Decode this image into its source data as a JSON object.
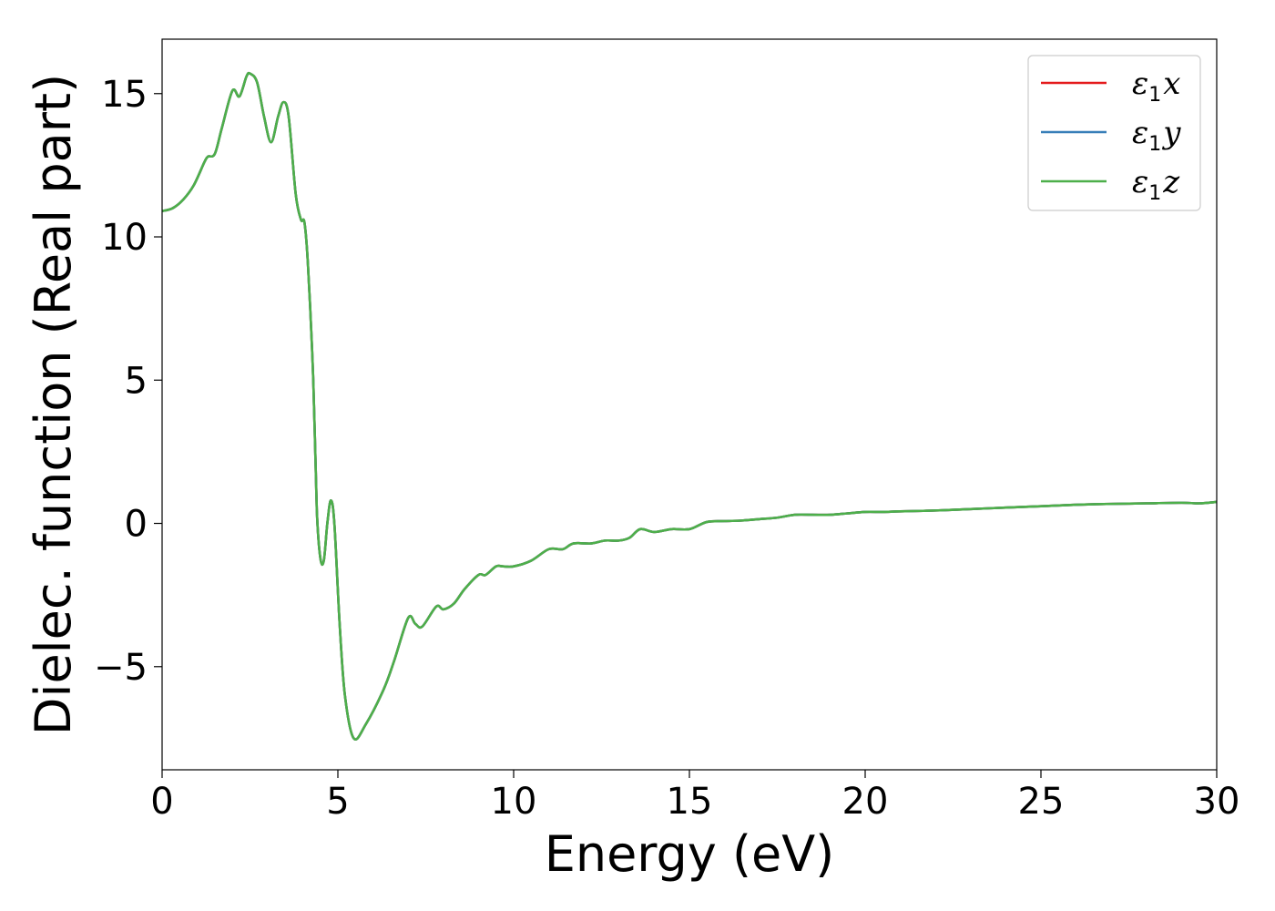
{
  "chart_data": {
    "type": "line",
    "title": "",
    "xlabel": "Energy (eV)",
    "ylabel": "Dielec. function (Real part)",
    "xlim": [
      0,
      30
    ],
    "ylim": [
      -8.6,
      16.9
    ],
    "xticks": [
      0,
      5,
      10,
      15,
      20,
      25,
      30
    ],
    "yticks": [
      -5,
      0,
      5,
      10,
      15
    ],
    "ytick_labels": [
      "−5",
      "0",
      "5",
      "10",
      "15"
    ],
    "grid": false,
    "legend_position": "top-right",
    "series": [
      {
        "name": "ε₁x",
        "legend_base": "ε",
        "legend_sub": "1",
        "legend_var": "x",
        "color": "#e41a1c",
        "x": [
          0,
          0.3,
          0.6,
          0.9,
          1.2,
          1.3,
          1.5,
          1.7,
          2.0,
          2.2,
          2.4,
          2.5,
          2.7,
          2.9,
          3.1,
          3.3,
          3.45,
          3.6,
          3.8,
          3.95,
          4.05,
          4.15,
          4.3,
          4.4,
          4.5,
          4.6,
          4.7,
          4.8,
          4.9,
          5.05,
          5.2,
          5.45,
          5.8,
          6.3,
          6.6,
          7.0,
          7.2,
          7.4,
          7.8,
          8.0,
          8.3,
          8.6,
          9.0,
          9.2,
          9.5,
          9.7,
          10.0,
          10.5,
          11.0,
          11.4,
          11.7,
          12.2,
          12.6,
          13.0,
          13.3,
          13.6,
          14.0,
          14.5,
          15.0,
          15.5,
          16.0,
          16.5,
          17.0,
          17.5,
          18.0,
          18.5,
          19.0,
          19.5,
          20.0,
          20.5,
          21.0,
          22.0,
          23.0,
          24.0,
          25.0,
          26.0,
          27.0,
          28.0,
          29.0,
          29.5,
          30.0
        ],
        "y": [
          10.9,
          11.0,
          11.3,
          11.8,
          12.6,
          12.8,
          12.9,
          13.8,
          15.1,
          14.9,
          15.6,
          15.7,
          15.4,
          14.2,
          13.3,
          14.2,
          14.7,
          14.2,
          11.5,
          10.6,
          10.5,
          9.0,
          5.0,
          0.5,
          -1.2,
          -1.3,
          0.0,
          0.8,
          0.0,
          -3.5,
          -6.0,
          -7.5,
          -7.0,
          -5.8,
          -4.8,
          -3.3,
          -3.5,
          -3.6,
          -2.9,
          -3.0,
          -2.8,
          -2.3,
          -1.8,
          -1.8,
          -1.5,
          -1.5,
          -1.5,
          -1.3,
          -0.9,
          -0.9,
          -0.7,
          -0.7,
          -0.6,
          -0.6,
          -0.5,
          -0.2,
          -0.3,
          -0.2,
          -0.2,
          0.05,
          0.08,
          0.1,
          0.15,
          0.2,
          0.3,
          0.3,
          0.3,
          0.35,
          0.4,
          0.4,
          0.42,
          0.45,
          0.5,
          0.55,
          0.6,
          0.65,
          0.68,
          0.7,
          0.72,
          0.7,
          0.75
        ]
      },
      {
        "name": "ε₁y",
        "legend_base": "ε",
        "legend_sub": "1",
        "legend_var": "y",
        "color": "#377eb8",
        "x": [
          0,
          0.3,
          0.6,
          0.9,
          1.2,
          1.3,
          1.5,
          1.7,
          2.0,
          2.2,
          2.4,
          2.5,
          2.7,
          2.9,
          3.1,
          3.3,
          3.45,
          3.6,
          3.8,
          3.95,
          4.05,
          4.15,
          4.3,
          4.4,
          4.5,
          4.6,
          4.7,
          4.8,
          4.9,
          5.05,
          5.2,
          5.45,
          5.8,
          6.3,
          6.6,
          7.0,
          7.2,
          7.4,
          7.8,
          8.0,
          8.3,
          8.6,
          9.0,
          9.2,
          9.5,
          9.7,
          10.0,
          10.5,
          11.0,
          11.4,
          11.7,
          12.2,
          12.6,
          13.0,
          13.3,
          13.6,
          14.0,
          14.5,
          15.0,
          15.5,
          16.0,
          16.5,
          17.0,
          17.5,
          18.0,
          18.5,
          19.0,
          19.5,
          20.0,
          20.5,
          21.0,
          22.0,
          23.0,
          24.0,
          25.0,
          26.0,
          27.0,
          28.0,
          29.0,
          29.5,
          30.0
        ],
        "y": [
          10.9,
          11.0,
          11.3,
          11.8,
          12.6,
          12.8,
          12.9,
          13.8,
          15.1,
          14.9,
          15.6,
          15.7,
          15.4,
          14.2,
          13.3,
          14.2,
          14.7,
          14.2,
          11.5,
          10.6,
          10.5,
          9.0,
          5.0,
          0.5,
          -1.2,
          -1.3,
          0.0,
          0.8,
          0.0,
          -3.5,
          -6.0,
          -7.5,
          -7.0,
          -5.8,
          -4.8,
          -3.3,
          -3.5,
          -3.6,
          -2.9,
          -3.0,
          -2.8,
          -2.3,
          -1.8,
          -1.8,
          -1.5,
          -1.5,
          -1.5,
          -1.3,
          -0.9,
          -0.9,
          -0.7,
          -0.7,
          -0.6,
          -0.6,
          -0.5,
          -0.2,
          -0.3,
          -0.2,
          -0.2,
          0.05,
          0.08,
          0.1,
          0.15,
          0.2,
          0.3,
          0.3,
          0.3,
          0.35,
          0.4,
          0.4,
          0.42,
          0.45,
          0.5,
          0.55,
          0.6,
          0.65,
          0.68,
          0.7,
          0.72,
          0.7,
          0.75
        ]
      },
      {
        "name": "ε₁z",
        "legend_base": "ε",
        "legend_sub": "1",
        "legend_var": "z",
        "color": "#4daf4a",
        "x": [
          0,
          0.3,
          0.6,
          0.9,
          1.2,
          1.3,
          1.5,
          1.7,
          2.0,
          2.2,
          2.4,
          2.5,
          2.7,
          2.9,
          3.1,
          3.3,
          3.45,
          3.6,
          3.8,
          3.95,
          4.05,
          4.15,
          4.3,
          4.4,
          4.5,
          4.6,
          4.7,
          4.8,
          4.9,
          5.05,
          5.2,
          5.45,
          5.8,
          6.3,
          6.6,
          7.0,
          7.2,
          7.4,
          7.8,
          8.0,
          8.3,
          8.6,
          9.0,
          9.2,
          9.5,
          9.7,
          10.0,
          10.5,
          11.0,
          11.4,
          11.7,
          12.2,
          12.6,
          13.0,
          13.3,
          13.6,
          14.0,
          14.5,
          15.0,
          15.5,
          16.0,
          16.5,
          17.0,
          17.5,
          18.0,
          18.5,
          19.0,
          19.5,
          20.0,
          20.5,
          21.0,
          22.0,
          23.0,
          24.0,
          25.0,
          26.0,
          27.0,
          28.0,
          29.0,
          29.5,
          30.0
        ],
        "y": [
          10.9,
          11.0,
          11.3,
          11.8,
          12.6,
          12.8,
          12.9,
          13.8,
          15.1,
          14.9,
          15.6,
          15.7,
          15.4,
          14.2,
          13.3,
          14.2,
          14.7,
          14.2,
          11.5,
          10.6,
          10.5,
          9.0,
          5.0,
          0.5,
          -1.2,
          -1.3,
          0.0,
          0.8,
          0.0,
          -3.5,
          -6.0,
          -7.5,
          -7.0,
          -5.8,
          -4.8,
          -3.3,
          -3.5,
          -3.6,
          -2.9,
          -3.0,
          -2.8,
          -2.3,
          -1.8,
          -1.8,
          -1.5,
          -1.5,
          -1.5,
          -1.3,
          -0.9,
          -0.9,
          -0.7,
          -0.7,
          -0.6,
          -0.6,
          -0.5,
          -0.2,
          -0.3,
          -0.2,
          -0.2,
          0.05,
          0.08,
          0.1,
          0.15,
          0.2,
          0.3,
          0.3,
          0.3,
          0.35,
          0.4,
          0.4,
          0.42,
          0.45,
          0.5,
          0.55,
          0.6,
          0.65,
          0.68,
          0.7,
          0.72,
          0.7,
          0.75
        ]
      }
    ]
  }
}
